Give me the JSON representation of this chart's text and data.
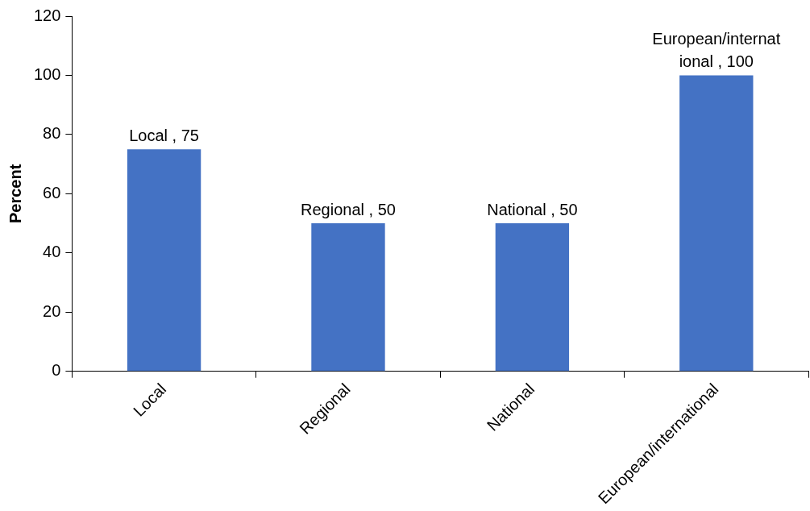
{
  "chart_data": {
    "type": "bar",
    "ylabel": "Percent",
    "categories": [
      "Local",
      "Regional",
      "National",
      "European/international"
    ],
    "values": [
      75,
      50,
      50,
      100
    ],
    "value_labels": [
      "Local , 75",
      "Regional , 50",
      "National , 50",
      "European/international , 100"
    ],
    "color": "#4472c4",
    "ylim": [
      0,
      120
    ],
    "yticks": [
      0,
      20,
      40,
      60,
      80,
      100,
      120
    ],
    "grid": false,
    "legend": false
  }
}
